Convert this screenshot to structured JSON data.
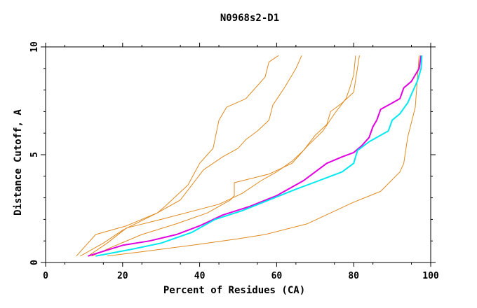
{
  "chart_data": {
    "type": "line",
    "title": "N0968s2-D1",
    "xlabel": "Percent of Residues (CA)",
    "ylabel": "Distance Cutoff, A",
    "xlim": [
      0,
      100
    ],
    "ylim": [
      0,
      10
    ],
    "x_ticks": [
      0,
      20,
      40,
      60,
      80,
      100
    ],
    "y_ticks": [
      0,
      5,
      10
    ],
    "grid": false,
    "legend": "none",
    "series": [
      {
        "name": "orange-1",
        "color": "#e08a1e",
        "points": [
          [
            8,
            0.3
          ],
          [
            13,
            1.3
          ],
          [
            21,
            1.7
          ],
          [
            29,
            2.3
          ],
          [
            31,
            2.6
          ],
          [
            37,
            3.6
          ],
          [
            40,
            4.6
          ],
          [
            42,
            5.0
          ],
          [
            43.5,
            5.3
          ],
          [
            45,
            6.6
          ],
          [
            47,
            7.2
          ],
          [
            52,
            7.6
          ],
          [
            54.5,
            8.1
          ],
          [
            57,
            8.6
          ],
          [
            58,
            9.3
          ],
          [
            60.5,
            9.6
          ]
        ]
      },
      {
        "name": "orange-2",
        "color": "#e08a1e",
        "points": [
          [
            9,
            0.3
          ],
          [
            15,
            0.9
          ],
          [
            20,
            1.5
          ],
          [
            29,
            2.3
          ],
          [
            35,
            2.9
          ],
          [
            41,
            4.3
          ],
          [
            46,
            4.9
          ],
          [
            50,
            5.3
          ],
          [
            52,
            5.7
          ],
          [
            55,
            6.1
          ],
          [
            58,
            6.6
          ],
          [
            59,
            7.3
          ],
          [
            62,
            8.1
          ],
          [
            65,
            9.0
          ],
          [
            66.5,
            9.6
          ]
        ]
      },
      {
        "name": "orange-3",
        "color": "#e08a1e",
        "points": [
          [
            11,
            0.3
          ],
          [
            16,
            0.9
          ],
          [
            21,
            1.6
          ],
          [
            30,
            2.0
          ],
          [
            45,
            2.7
          ],
          [
            51,
            3.2
          ],
          [
            56,
            3.8
          ],
          [
            60,
            4.2
          ],
          [
            64,
            4.7
          ],
          [
            67,
            5.2
          ],
          [
            70,
            5.9
          ],
          [
            73,
            6.4
          ],
          [
            74,
            7.0
          ],
          [
            77,
            7.4
          ],
          [
            80,
            7.9
          ],
          [
            81.5,
            9.6
          ]
        ]
      },
      {
        "name": "orange-4",
        "color": "#e08a1e",
        "points": [
          [
            12,
            0.3
          ],
          [
            17,
            0.7
          ],
          [
            25,
            1.3
          ],
          [
            34,
            1.8
          ],
          [
            42,
            2.3
          ],
          [
            48,
            2.9
          ],
          [
            49,
            3.1
          ],
          [
            49,
            3.7
          ],
          [
            58,
            4.1
          ],
          [
            64,
            4.6
          ],
          [
            68,
            5.4
          ],
          [
            72,
            6.1
          ],
          [
            75,
            6.9
          ],
          [
            78,
            7.6
          ],
          [
            79,
            8.1
          ],
          [
            80,
            8.7
          ],
          [
            80.5,
            9.6
          ]
        ]
      },
      {
        "name": "orange-5",
        "color": "#e08a1e",
        "points": [
          [
            16,
            0.3
          ],
          [
            25,
            0.5
          ],
          [
            38,
            0.8
          ],
          [
            50,
            1.1
          ],
          [
            57,
            1.3
          ],
          [
            68,
            1.8
          ],
          [
            80,
            2.8
          ],
          [
            87,
            3.3
          ],
          [
            92,
            4.2
          ],
          [
            93,
            4.6
          ],
          [
            94,
            5.8
          ],
          [
            96,
            7.2
          ],
          [
            97,
            9.6
          ]
        ]
      },
      {
        "name": "magenta",
        "color": "#e000e0",
        "points": [
          [
            11,
            0.3
          ],
          [
            20,
            0.8
          ],
          [
            27,
            1.0
          ],
          [
            34,
            1.3
          ],
          [
            40,
            1.7
          ],
          [
            46,
            2.2
          ],
          [
            53,
            2.6
          ],
          [
            60,
            3.1
          ],
          [
            67,
            3.8
          ],
          [
            73,
            4.6
          ],
          [
            77,
            4.9
          ],
          [
            80,
            5.1
          ],
          [
            82,
            5.4
          ],
          [
            84,
            5.8
          ],
          [
            85,
            6.3
          ],
          [
            86,
            6.6
          ],
          [
            87,
            7.1
          ],
          [
            90,
            7.4
          ],
          [
            92,
            7.6
          ],
          [
            93,
            8.1
          ],
          [
            95,
            8.4
          ],
          [
            97,
            9.0
          ],
          [
            97.5,
            9.6
          ]
        ]
      },
      {
        "name": "cyan",
        "color": "#00e8f0",
        "points": [
          [
            13,
            0.3
          ],
          [
            22,
            0.6
          ],
          [
            30,
            0.9
          ],
          [
            38,
            1.4
          ],
          [
            44,
            2.0
          ],
          [
            51,
            2.4
          ],
          [
            58,
            2.9
          ],
          [
            65,
            3.4
          ],
          [
            71,
            3.8
          ],
          [
            77,
            4.2
          ],
          [
            80,
            4.6
          ],
          [
            81,
            5.2
          ],
          [
            84,
            5.6
          ],
          [
            87,
            5.9
          ],
          [
            89,
            6.1
          ],
          [
            90,
            6.6
          ],
          [
            92,
            6.9
          ],
          [
            94,
            7.4
          ],
          [
            95,
            7.8
          ],
          [
            96.5,
            8.4
          ],
          [
            97.5,
            9.0
          ],
          [
            97.7,
            9.6
          ]
        ]
      }
    ]
  }
}
